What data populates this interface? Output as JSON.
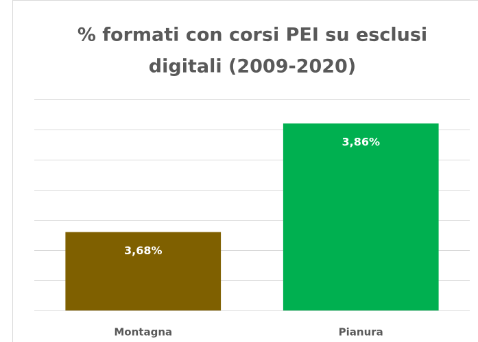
{
  "chart_data": {
    "type": "bar",
    "title": [
      "% formati con corsi PEI su esclusi",
      "digitali (2009-2020)"
    ],
    "categories": [
      "Montagna",
      "Pianura"
    ],
    "values": [
      3.68,
      3.86
    ],
    "value_labels": [
      "3,68%",
      "3,86%"
    ],
    "colors": [
      "#7f6000",
      "#00b050"
    ],
    "ylim": [
      3.55,
      3.9
    ],
    "yticks": [
      3.55,
      3.6,
      3.65,
      3.7,
      3.75,
      3.8,
      3.85,
      3.9
    ],
    "grid": true
  }
}
